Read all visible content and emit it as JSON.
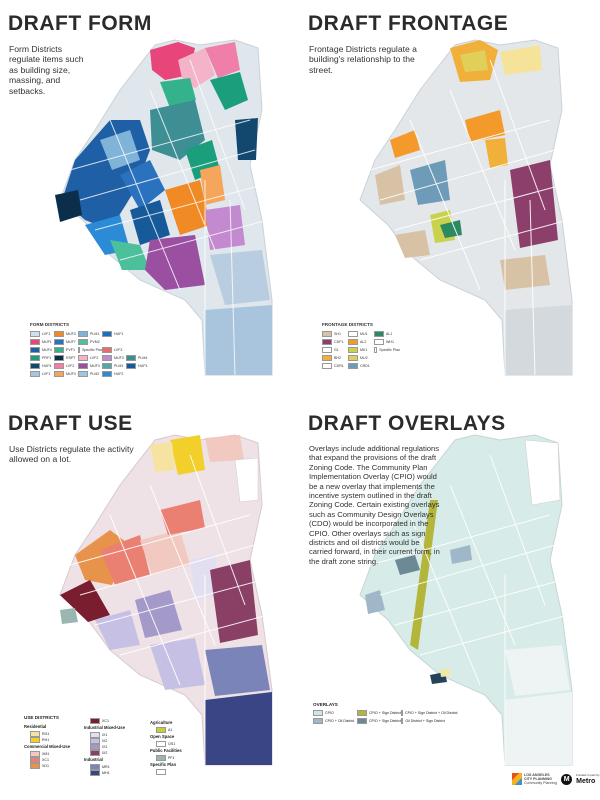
{
  "form": {
    "title": "DRAFT FORM",
    "description": "Form Districts regulate items such as building size, massing, and setbacks.",
    "legend_title": "FORM DISTRICTS",
    "legend": [
      {
        "label": "LVF1",
        "color": "#cfe0ea"
      },
      {
        "label": "MUF1",
        "color": "#e8457a"
      },
      {
        "label": "MUF4",
        "color": "#1f5fa6"
      },
      {
        "label": "PRF1",
        "color": "#1a9e7b"
      },
      {
        "label": "HUF4",
        "color": "#13486e"
      },
      {
        "label": "LVF1",
        "color": "#a9c4dd"
      },
      {
        "label": "MUF3",
        "color": "#f08a24"
      },
      {
        "label": "MUF7",
        "color": "#2a72bd"
      },
      {
        "label": "PVF1",
        "color": "#34b28b"
      },
      {
        "label": "RSPT",
        "color": "#0b2f4a"
      },
      {
        "label": "LVF2",
        "color": "#ef7fa8"
      },
      {
        "label": "MUF3",
        "color": "#f6a65a"
      },
      {
        "label": "PLM1",
        "color": "#7fb3d8"
      },
      {
        "label": "PVM2",
        "color": "#4bc09a"
      },
      {
        "label": "Specific Plan",
        "color": "#ffffff"
      },
      {
        "label": "LVF2",
        "color": "#f4b3c9"
      },
      {
        "label": "MUF3",
        "color": "#9a4fa0"
      },
      {
        "label": "PLM2",
        "color": "#9cc6e2"
      },
      {
        "label": "HUF1",
        "color": "#1c6ec0"
      },
      {
        "label": "",
        "color": ""
      },
      {
        "label": "LVF3",
        "color": "#e96b6b"
      },
      {
        "label": "MUF3",
        "color": "#c48ad0"
      },
      {
        "label": "PLM3",
        "color": "#5aa4a8"
      },
      {
        "label": "HUF2",
        "color": "#2c8bd6"
      },
      {
        "label": "",
        "color": ""
      },
      {
        "label": "",
        "color": ""
      },
      {
        "label": "",
        "color": ""
      },
      {
        "label": "PLM4",
        "color": "#3d8f94"
      },
      {
        "label": "HUF3",
        "color": "#175a9a"
      },
      {
        "label": "",
        "color": ""
      }
    ]
  },
  "frontage": {
    "title": "DRAFT FRONTAGE",
    "description": "Frontage Districts regulate a building's relationship to the street.",
    "legend_title": "FRONTAGE DISTRICTS",
    "legend": [
      {
        "label": "SH1",
        "color": "#d7c2a6"
      },
      {
        "label": "CDF1",
        "color": "#8d3f6c"
      },
      {
        "label": "G1",
        "color": "#ffffff"
      },
      {
        "label": "BH2",
        "color": "#f0b03a"
      },
      {
        "label": "CDR1",
        "color": "#ffffff"
      },
      {
        "label": "MU1",
        "color": "#ffffff"
      },
      {
        "label": "AL2",
        "color": "#f39a2b"
      },
      {
        "label": "MK1",
        "color": "#c9d24a"
      },
      {
        "label": "MU2",
        "color": "#e0d05a"
      },
      {
        "label": "CRD1",
        "color": "#6e9cb8"
      },
      {
        "label": "AL1",
        "color": "#2c8a63"
      },
      {
        "label": "WH1",
        "color": "#ffffff"
      },
      {
        "label": "Specific Plan",
        "color": "#ffffff"
      }
    ]
  },
  "use": {
    "title": "DRAFT USE",
    "description": "Use Districts regulate the activity allowed on a lot.",
    "legend_title": "USE DISTRICTS",
    "col1": [
      {
        "head": "Residential"
      },
      {
        "label": "RG1",
        "color": "#f6e3a1"
      },
      {
        "label": "RH1",
        "color": "#f2cf2a"
      },
      {
        "head": "Commercial Mixed-Use"
      },
      {
        "label": "XM1",
        "color": "#f1c9c1"
      },
      {
        "label": "XC1",
        "color": "#ea8072"
      },
      {
        "label": "XD1",
        "color": "#e8934b"
      }
    ],
    "col2": [
      {
        "label": "XC1",
        "color": "#7a1d2e"
      },
      {
        "head": "Industrial Mixed-Use"
      },
      {
        "label": "IX1",
        "color": "#e2dff0"
      },
      {
        "label": "IX2",
        "color": "#c6c0e4"
      },
      {
        "label": "IX1",
        "color": "#a39ac9"
      },
      {
        "label": "IX2",
        "color": "#8a3f64"
      },
      {
        "head": "Industrial"
      },
      {
        "label": "MR1",
        "color": "#7b84b8"
      },
      {
        "label": "MH1",
        "color": "#3a4586"
      }
    ],
    "col3": [
      {
        "head": "Agriculture"
      },
      {
        "label": "A1",
        "color": "#c8cc3a"
      },
      {
        "head": "Open Space"
      },
      {
        "label": "OS1",
        "color": "#ffffff"
      },
      {
        "head": "Public Facilities"
      },
      {
        "label": "PF1",
        "color": "#9bb5b0"
      },
      {
        "head": "Specific Plan"
      },
      {
        "label": "",
        "color": "#ffffff"
      }
    ]
  },
  "overlays": {
    "title": "DRAFT OVERLAYS",
    "description": "Overlays include additional regulations that expand the provisions of the draft Zoning Code. The Community Plan Implementation Overlay (CPIO) would be a new overlay that implements the incentive system outlined in the draft Zoning Code. Certain existing overlays such as Community Design Overlays (CDO) would be incorporated in the CPIO. Other overlays such as sign districts and oil districts would be carried forward, in their current form, in the draft zone string.",
    "legend_title": "OVERLAYS",
    "legend": [
      {
        "label": "CPIO",
        "color": "#cfe5e3"
      },
      {
        "label": "CPIO + Sign District",
        "color": "#b3b63a"
      },
      {
        "label": "CPIO + Sign District + Oil District",
        "color": "#25425a"
      },
      {
        "label": "CPIO + Oil District",
        "color": "#9fb7c8"
      },
      {
        "label": "CPIO + Sign District",
        "color": "#6c8a96"
      },
      {
        "label": "Oil District + Sign District",
        "color": "#f2e8a6"
      }
    ]
  },
  "footer": {
    "cp_line1": "LOS ANGELES",
    "cp_line2": "CITY PLANNING",
    "cp_line3": "Community Planning",
    "metro_letter": "M",
    "metro_small": "Funded in part by",
    "metro_word": "Metro"
  }
}
